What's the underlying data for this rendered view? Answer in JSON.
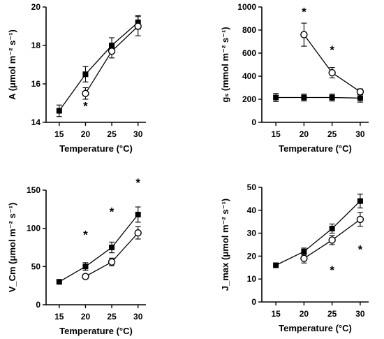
{
  "chart_data": [
    {
      "type": "line",
      "ylabel": "A (μmol m⁻² s⁻¹)",
      "xlabel": "Temperature (°C)",
      "x": [
        15,
        20,
        25,
        30
      ],
      "xlim": [
        12.5,
        31.5
      ],
      "ylim": [
        14,
        20
      ],
      "yticks": [
        14,
        16,
        18,
        20
      ],
      "series": [
        {
          "marker": "filled-square",
          "points": [
            {
              "x": 15,
              "y": 14.6,
              "err": 0.3
            },
            {
              "x": 20,
              "y": 16.5,
              "err": 0.4
            },
            {
              "x": 25,
              "y": 18.0,
              "err": 0.4
            },
            {
              "x": 30,
              "y": 19.2,
              "err": 0.35
            }
          ]
        },
        {
          "marker": "open-circle",
          "points": [
            {
              "x": 20,
              "y": 15.5,
              "err": 0.3
            },
            {
              "x": 25,
              "y": 17.7,
              "err": 0.35
            },
            {
              "x": 30,
              "y": 19.0,
              "err": 0.5
            }
          ]
        }
      ],
      "annotations": [
        {
          "text": "*",
          "x": 20,
          "y": 14.85
        }
      ]
    },
    {
      "type": "line",
      "ylabel": "gₛ (mmol m⁻² s⁻¹)",
      "xlabel": "Temperature (°C)",
      "x": [
        15,
        20,
        25,
        30
      ],
      "xlim": [
        12.5,
        31.5
      ],
      "ylim": [
        0,
        1000
      ],
      "yticks": [
        0,
        200,
        400,
        600,
        800,
        1000
      ],
      "series": [
        {
          "marker": "filled-square",
          "points": [
            {
              "x": 15,
              "y": 215,
              "err": 35
            },
            {
              "x": 20,
              "y": 215,
              "err": 30
            },
            {
              "x": 25,
              "y": 215,
              "err": 30
            },
            {
              "x": 30,
              "y": 210,
              "err": 35
            }
          ]
        },
        {
          "marker": "open-circle",
          "points": [
            {
              "x": 20,
              "y": 760,
              "err": 100
            },
            {
              "x": 25,
              "y": 430,
              "err": 45
            },
            {
              "x": 30,
              "y": 265,
              "err": 25
            }
          ]
        }
      ],
      "annotations": [
        {
          "text": "*",
          "x": 20,
          "y": 960
        },
        {
          "text": "*",
          "x": 25,
          "y": 630
        }
      ]
    },
    {
      "type": "line",
      "ylabel": "V_Cm (μmol m⁻² s⁻¹)",
      "xlabel": "Temperature (°C)",
      "x": [
        15,
        20,
        25,
        30
      ],
      "xlim": [
        12.5,
        31.5
      ],
      "ylim": [
        0,
        150
      ],
      "yticks": [
        0,
        50,
        100,
        150
      ],
      "series": [
        {
          "marker": "filled-square",
          "points": [
            {
              "x": 15,
              "y": 30,
              "err": 0
            },
            {
              "x": 20,
              "y": 50,
              "err": 5
            },
            {
              "x": 25,
              "y": 75,
              "err": 7
            },
            {
              "x": 30,
              "y": 118,
              "err": 10
            }
          ]
        },
        {
          "marker": "open-circle",
          "points": [
            {
              "x": 20,
              "y": 37,
              "err": 3
            },
            {
              "x": 25,
              "y": 56,
              "err": 5
            },
            {
              "x": 30,
              "y": 94,
              "err": 8
            }
          ]
        }
      ],
      "annotations": [
        {
          "text": "*",
          "x": 20,
          "y": 92
        },
        {
          "text": "*",
          "x": 25,
          "y": 122
        },
        {
          "text": "*",
          "x": 30,
          "y": 160
        }
      ]
    },
    {
      "type": "line",
      "ylabel": "J_max (μmol m⁻² s⁻¹)",
      "xlabel": "Temperature (°C)",
      "x": [
        15,
        20,
        25,
        30
      ],
      "xlim": [
        12.5,
        31.5
      ],
      "ylim": [
        0,
        50
      ],
      "yticks": [
        0,
        10,
        20,
        30,
        40,
        50
      ],
      "series": [
        {
          "marker": "filled-square",
          "points": [
            {
              "x": 15,
              "y": 16,
              "err": 1
            },
            {
              "x": 20,
              "y": 22,
              "err": 1.5
            },
            {
              "x": 25,
              "y": 32,
              "err": 2
            },
            {
              "x": 30,
              "y": 44,
              "err": 3
            }
          ]
        },
        {
          "marker": "open-circle",
          "points": [
            {
              "x": 20,
              "y": 19,
              "err": 2
            },
            {
              "x": 25,
              "y": 27,
              "err": 2
            },
            {
              "x": 30,
              "y": 36,
              "err": 3
            }
          ]
        }
      ],
      "annotations": [
        {
          "text": "*",
          "x": 25,
          "y": 14
        },
        {
          "text": "*",
          "x": 30,
          "y": 23
        }
      ]
    }
  ]
}
